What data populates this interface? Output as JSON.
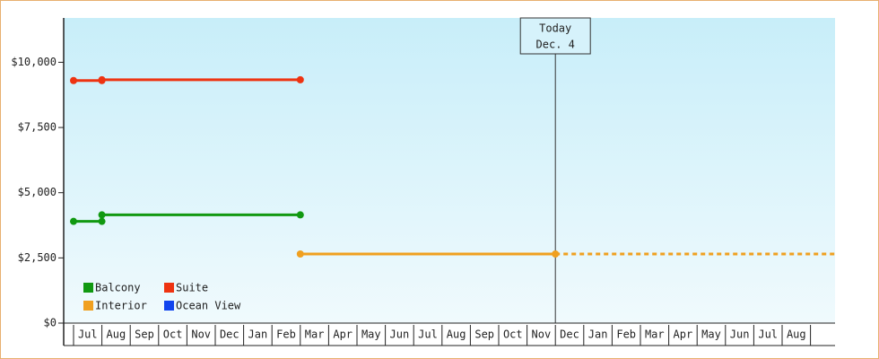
{
  "chart_data": {
    "type": "line",
    "categories": [
      "Jul",
      "Aug",
      "Sep",
      "Oct",
      "Nov",
      "Dec",
      "Jan",
      "Feb",
      "Mar",
      "Apr",
      "May",
      "Jun",
      "Jul",
      "Aug",
      "Sep",
      "Oct",
      "Nov",
      "Dec",
      "Jan",
      "Feb",
      "Mar",
      "Apr",
      "May",
      "Jun",
      "Jul",
      "Aug"
    ],
    "series": [
      {
        "name": "Balcony",
        "color": "#119911",
        "x": [
          0,
          1,
          8
        ],
        "values": [
          3900,
          4150,
          4150
        ]
      },
      {
        "name": "Suite",
        "color": "#ee3311",
        "x": [
          0,
          1,
          8
        ],
        "values": [
          9300,
          9330,
          9330
        ]
      },
      {
        "name": "Interior",
        "color": "#f0a020",
        "x": [
          8,
          17
        ],
        "values": [
          2650,
          2650
        ],
        "projected": true
      },
      {
        "name": "Ocean View",
        "color": "#1144ee",
        "x": [],
        "values": []
      }
    ],
    "ylim": [
      0,
      11700
    ],
    "yticks": [
      {
        "value": 0,
        "label": "$0"
      },
      {
        "value": 2500,
        "label": "$2,500"
      },
      {
        "value": 5000,
        "label": "$5,000"
      },
      {
        "value": 7500,
        "label": "$7,500"
      },
      {
        "value": 10000,
        "label": "$10,000"
      }
    ],
    "annotation": [
      "Today",
      "Dec. 4"
    ],
    "legend": "lower-left"
  }
}
